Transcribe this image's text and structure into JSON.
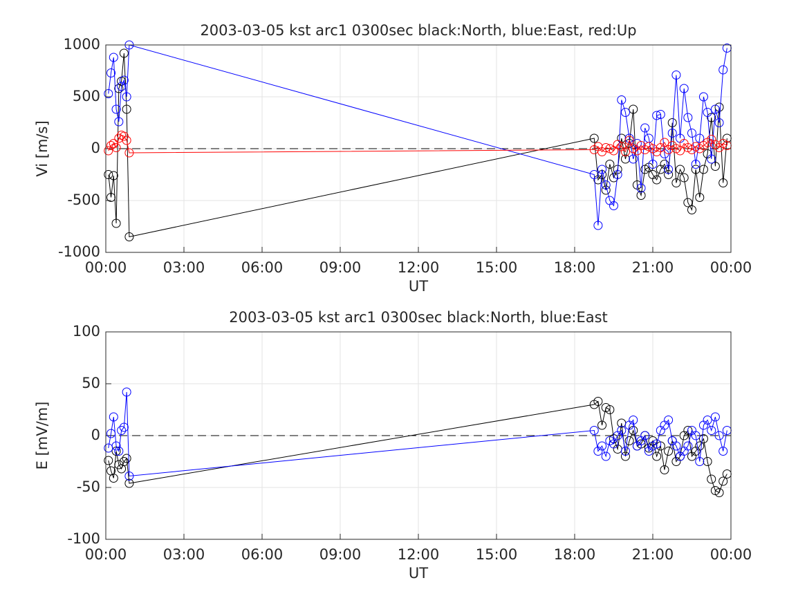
{
  "chart_data": [
    {
      "type": "line",
      "title": "2003-03-05 kst arc1 0300sec black:North, blue:East, red:Up",
      "xlabel": "UT",
      "ylabel": "Vi [m/s]",
      "grid": true,
      "reference_line": 0,
      "marker": "circle",
      "xlim": [
        0,
        24
      ],
      "xticks": [
        {
          "value": 0,
          "label": "00:00"
        },
        {
          "value": 3,
          "label": "03:00"
        },
        {
          "value": 6,
          "label": "06:00"
        },
        {
          "value": 9,
          "label": "09:00"
        },
        {
          "value": 12,
          "label": "12:00"
        },
        {
          "value": 15,
          "label": "15:00"
        },
        {
          "value": 18,
          "label": "18:00"
        },
        {
          "value": 21,
          "label": "21:00"
        },
        {
          "value": 24,
          "label": "00:00"
        }
      ],
      "ylim": [
        -1000,
        1000
      ],
      "yticks": [
        -1000,
        -500,
        0,
        500,
        1000
      ],
      "x": [
        0.1,
        0.2,
        0.3,
        0.4,
        0.5,
        0.6,
        0.7,
        0.8,
        0.9,
        18.75,
        18.9,
        19.05,
        19.2,
        19.35,
        19.5,
        19.65,
        19.8,
        19.95,
        20.1,
        20.25,
        20.4,
        20.55,
        20.7,
        20.85,
        21.0,
        21.15,
        21.3,
        21.45,
        21.6,
        21.75,
        21.9,
        22.05,
        22.2,
        22.35,
        22.5,
        22.65,
        22.8,
        22.95,
        23.1,
        23.25,
        23.4,
        23.55,
        23.7,
        23.85
      ],
      "series": [
        {
          "name": "North",
          "color": "#000000",
          "values": [
            -250,
            -470,
            -260,
            -720,
            580,
            650,
            920,
            380,
            -850,
            100,
            -300,
            -250,
            -400,
            -150,
            -280,
            -200,
            100,
            -100,
            50,
            380,
            -350,
            -450,
            -200,
            -180,
            -250,
            -300,
            -200,
            -150,
            -250,
            250,
            -330,
            -200,
            -280,
            -520,
            -590,
            -200,
            -470,
            -200,
            -50,
            300,
            -170,
            400,
            -330,
            100
          ]
        },
        {
          "name": "East",
          "color": "#0000ff",
          "values": [
            530,
            730,
            880,
            380,
            260,
            600,
            660,
            500,
            1000,
            -250,
            -740,
            -200,
            -350,
            -500,
            -550,
            -250,
            470,
            350,
            100,
            -100,
            50,
            -380,
            200,
            100,
            -150,
            320,
            330,
            -50,
            -200,
            150,
            710,
            100,
            580,
            300,
            150,
            -150,
            100,
            500,
            350,
            -100,
            380,
            250,
            760,
            970
          ]
        },
        {
          "name": "Up",
          "color": "#ff0000",
          "values": [
            -20,
            30,
            50,
            10,
            100,
            130,
            120,
            80,
            -40,
            -10,
            20,
            -30,
            10,
            0,
            -20,
            40,
            20,
            -30,
            80,
            0,
            -20,
            30,
            -10,
            20,
            0,
            -30,
            10,
            60,
            -10,
            30,
            0,
            -20,
            50,
            10,
            -10,
            20,
            0,
            30,
            60,
            90,
            40,
            10,
            50,
            30
          ]
        }
      ]
    },
    {
      "type": "line",
      "title": "2003-03-05 kst arc1 0300sec black:North, blue:East",
      "xlabel": "UT",
      "ylabel": "E [mV/m]",
      "grid": true,
      "reference_line": 0,
      "marker": "circle",
      "xlim": [
        0,
        24
      ],
      "xticks": [
        {
          "value": 0,
          "label": "00:00"
        },
        {
          "value": 3,
          "label": "03:00"
        },
        {
          "value": 6,
          "label": "06:00"
        },
        {
          "value": 9,
          "label": "09:00"
        },
        {
          "value": 12,
          "label": "12:00"
        },
        {
          "value": 15,
          "label": "15:00"
        },
        {
          "value": 18,
          "label": "18:00"
        },
        {
          "value": 21,
          "label": "21:00"
        },
        {
          "value": 24,
          "label": "00:00"
        }
      ],
      "ylim": [
        -100,
        100
      ],
      "yticks": [
        -100,
        -50,
        0,
        50,
        100
      ],
      "x": [
        0.1,
        0.2,
        0.3,
        0.4,
        0.5,
        0.6,
        0.7,
        0.8,
        0.9,
        18.75,
        18.9,
        19.05,
        19.2,
        19.35,
        19.5,
        19.65,
        19.8,
        19.95,
        20.1,
        20.25,
        20.4,
        20.55,
        20.7,
        20.85,
        21.0,
        21.15,
        21.3,
        21.45,
        21.6,
        21.75,
        21.9,
        22.05,
        22.2,
        22.35,
        22.5,
        22.65,
        22.8,
        22.95,
        23.1,
        23.25,
        23.4,
        23.55,
        23.7,
        23.85
      ],
      "series": [
        {
          "name": "North",
          "color": "#000000",
          "values": [
            -24,
            -34,
            -41,
            -15,
            -28,
            -32,
            -25,
            -22,
            -46,
            30,
            33,
            10,
            27,
            25,
            -3,
            -13,
            12,
            -20,
            -5,
            5,
            -10,
            -8,
            0,
            -12,
            -5,
            -20,
            -10,
            -33,
            -15,
            -5,
            -25,
            -20,
            0,
            5,
            -20,
            -15,
            -10,
            -3,
            -25,
            -42,
            -53,
            -55,
            -44,
            -37
          ]
        },
        {
          "name": "East",
          "color": "#0000ff",
          "values": [
            -12,
            2,
            18,
            -10,
            -15,
            5,
            8,
            42,
            -39,
            5,
            -15,
            -10,
            -20,
            -5,
            -8,
            0,
            5,
            -15,
            10,
            15,
            -10,
            -5,
            0,
            -15,
            -10,
            -8,
            5,
            10,
            15,
            -5,
            -10,
            -20,
            -15,
            -10,
            5,
            0,
            -25,
            10,
            15,
            5,
            18,
            0,
            -15,
            5
          ]
        }
      ]
    }
  ]
}
